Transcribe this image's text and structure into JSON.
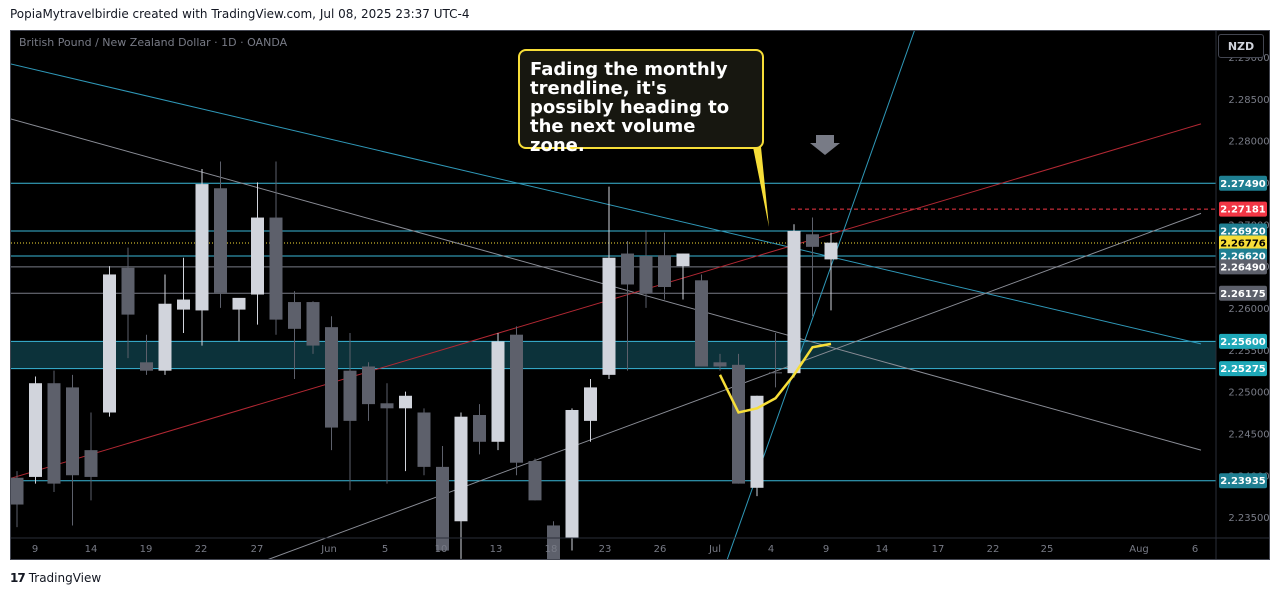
{
  "header": {
    "text": "PopiaMytravelbirdie created with TradingView.com, Jul 08, 2025 23:37 UTC-4"
  },
  "symbol": {
    "text": "British Pound / New Zealand Dollar · 1D · OANDA"
  },
  "currency_button": "NZD",
  "annotation": {
    "text": "Fading the monthly trendline, it's possibly heading to the next volume zone."
  },
  "footer": {
    "logo": "17",
    "brand": "TradingView"
  },
  "colors": {
    "bg": "#000000",
    "up": "#d1d4dc",
    "down": "#5d606b",
    "teal": "#26a69a",
    "cyan_line": "#3ab7d8",
    "red_line": "#b22833",
    "gray_line": "#787b86",
    "yellow": "#f7de38",
    "red_label": "#f23645"
  },
  "chart_data": {
    "type": "candlestick",
    "y_axis": {
      "min": 2.2325,
      "max": 2.2928,
      "ticks": [
        "2.29000",
        "2.28500",
        "2.28000",
        "2.27500",
        "2.27000",
        "2.26500",
        "2.26000",
        "2.25500",
        "2.25000",
        "2.24500",
        "2.24000",
        "2.23500"
      ]
    },
    "x_axis": {
      "ticks": [
        "9",
        "14",
        "19",
        "22",
        "27",
        "Jun",
        "5",
        "10",
        "13",
        "18",
        "23",
        "26",
        "Jul",
        "4",
        "9",
        "14",
        "17",
        "22",
        "25",
        "Aug",
        "6"
      ]
    },
    "candles": [
      {
        "o": 2.2397,
        "h": 2.2405,
        "l": 2.2338,
        "c": 2.2365
      },
      {
        "o": 2.2398,
        "h": 2.2518,
        "l": 2.239,
        "c": 2.251
      },
      {
        "o": 2.251,
        "h": 2.2525,
        "l": 2.238,
        "c": 2.239
      },
      {
        "o": 2.2505,
        "h": 2.252,
        "l": 2.234,
        "c": 2.24
      },
      {
        "o": 2.243,
        "h": 2.2475,
        "l": 2.237,
        "c": 2.2398
      },
      {
        "o": 2.2475,
        "h": 2.265,
        "l": 2.247,
        "c": 2.264
      },
      {
        "o": 2.2648,
        "h": 2.2672,
        "l": 2.254,
        "c": 2.2592
      },
      {
        "o": 2.2535,
        "h": 2.2568,
        "l": 2.252,
        "c": 2.2525
      },
      {
        "o": 2.2525,
        "h": 2.264,
        "l": 2.252,
        "c": 2.2605
      },
      {
        "o": 2.2598,
        "h": 2.266,
        "l": 2.257,
        "c": 2.261
      },
      {
        "o": 2.2597,
        "h": 2.2766,
        "l": 2.2555,
        "c": 2.2748
      },
      {
        "o": 2.2743,
        "h": 2.2775,
        "l": 2.26,
        "c": 2.2618
      },
      {
        "o": 2.2598,
        "h": 2.261,
        "l": 2.256,
        "c": 2.2612
      },
      {
        "o": 2.2616,
        "h": 2.275,
        "l": 2.258,
        "c": 2.2708
      },
      {
        "o": 2.2708,
        "h": 2.2775,
        "l": 2.2568,
        "c": 2.2586
      },
      {
        "o": 2.2607,
        "h": 2.262,
        "l": 2.2515,
        "c": 2.2575
      },
      {
        "o": 2.2607,
        "h": 2.2608,
        "l": 2.2545,
        "c": 2.2555
      },
      {
        "o": 2.2577,
        "h": 2.259,
        "l": 2.243,
        "c": 2.2457
      },
      {
        "o": 2.2525,
        "h": 2.257,
        "l": 2.2382,
        "c": 2.2465
      },
      {
        "o": 2.253,
        "h": 2.2535,
        "l": 2.2465,
        "c": 2.2485
      },
      {
        "o": 2.2486,
        "h": 2.251,
        "l": 2.239,
        "c": 2.248
      },
      {
        "o": 2.248,
        "h": 2.25,
        "l": 2.2405,
        "c": 2.2495
      },
      {
        "o": 2.2475,
        "h": 2.248,
        "l": 2.24,
        "c": 2.241
      },
      {
        "o": 2.241,
        "h": 2.2435,
        "l": 2.231,
        "c": 2.231
      },
      {
        "o": 2.2345,
        "h": 2.2475,
        "l": 2.23,
        "c": 2.247
      },
      {
        "o": 2.2472,
        "h": 2.2485,
        "l": 2.2425,
        "c": 2.244
      },
      {
        "o": 2.244,
        "h": 2.257,
        "l": 2.243,
        "c": 2.256
      },
      {
        "o": 2.2568,
        "h": 2.2578,
        "l": 2.24,
        "c": 2.2415
      },
      {
        "o": 2.2417,
        "h": 2.242,
        "l": 2.237,
        "c": 2.237
      },
      {
        "o": 2.234,
        "h": 2.2345,
        "l": 2.224,
        "c": 2.2242
      },
      {
        "o": 2.2325,
        "h": 2.248,
        "l": 2.231,
        "c": 2.2478
      },
      {
        "o": 2.2465,
        "h": 2.2515,
        "l": 2.244,
        "c": 2.2505
      },
      {
        "o": 2.252,
        "h": 2.2745,
        "l": 2.2515,
        "c": 2.266
      },
      {
        "o": 2.2665,
        "h": 2.268,
        "l": 2.2525,
        "c": 2.2628
      },
      {
        "o": 2.2662,
        "h": 2.2693,
        "l": 2.26,
        "c": 2.2617
      },
      {
        "o": 2.2663,
        "h": 2.269,
        "l": 2.261,
        "c": 2.2625
      },
      {
        "o": 2.265,
        "h": 2.2665,
        "l": 2.261,
        "c": 2.2665
      },
      {
        "o": 2.2633,
        "h": 2.264,
        "l": 2.253,
        "c": 2.253
      },
      {
        "o": 2.2535,
        "h": 2.2545,
        "l": 2.2525,
        "c": 2.253
      },
      {
        "o": 2.2532,
        "h": 2.2545,
        "l": 2.239,
        "c": 2.239
      },
      {
        "o": 2.2385,
        "h": 2.2495,
        "l": 2.2375,
        "c": 2.2495
      },
      {
        "o": 2.2523,
        "h": 2.257,
        "l": 2.2505,
        "c": 2.2522
      },
      {
        "o": 2.2522,
        "h": 2.27,
        "l": 2.2517,
        "c": 2.2692
      },
      {
        "o": 2.2688,
        "h": 2.2708,
        "l": 2.259,
        "c": 2.2673
      },
      {
        "o": 2.2658,
        "h": 2.269,
        "l": 2.2597,
        "c": 2.2678
      }
    ],
    "horizontal_levels": [
      {
        "value": 2.2749,
        "label": "2.27490",
        "kind": "line"
      },
      {
        "value": 2.27181,
        "label": "2.27181",
        "kind": "red-dashed"
      },
      {
        "value": 2.2692,
        "label": "2.26920",
        "kind": "line"
      },
      {
        "value": 2.26776,
        "label": "2.26776",
        "kind": "current-price"
      },
      {
        "value": 2.2662,
        "label": "2.26620",
        "kind": "line"
      },
      {
        "value": 2.2649,
        "label": "2.26490",
        "kind": "gray"
      },
      {
        "value": 2.26175,
        "label": "2.26175",
        "kind": "gray"
      },
      {
        "value": 2.256,
        "label": "2.25600",
        "kind": "zone-top"
      },
      {
        "value": 2.25275,
        "label": "2.25275",
        "kind": "zone-bottom"
      },
      {
        "value": 2.23935,
        "label": "2.23935",
        "kind": "line"
      }
    ],
    "trendlines": [
      {
        "color": "cyan",
        "from": {
          "bar": -1,
          "price": 2.2895
        },
        "to": {
          "bar": 64,
          "price": 2.2557
        }
      },
      {
        "color": "gray",
        "from": {
          "bar": -1,
          "price": 2.283
        },
        "to": {
          "bar": 64,
          "price": 2.243
        }
      },
      {
        "color": "red",
        "from": {
          "bar": -1,
          "price": 2.2392
        },
        "to": {
          "bar": 64,
          "price": 2.282
        }
      },
      {
        "color": "gray",
        "from": {
          "bar": 10,
          "price": 2.227
        },
        "to": {
          "bar": 64,
          "price": 2.2713
        }
      },
      {
        "color": "cyan",
        "from": {
          "bar": 38,
          "price": 2.2275
        },
        "to": {
          "bar": 49,
          "price": 2.2962
        }
      }
    ],
    "yellow_path": [
      {
        "bar": 38,
        "price": 2.252
      },
      {
        "bar": 39,
        "price": 2.2475
      },
      {
        "bar": 40,
        "price": 2.248
      },
      {
        "bar": 41,
        "price": 2.2492
      },
      {
        "bar": 42,
        "price": 2.252
      },
      {
        "bar": 43,
        "price": 2.2553
      },
      {
        "bar": 44,
        "price": 2.2557
      }
    ],
    "grid": false
  }
}
